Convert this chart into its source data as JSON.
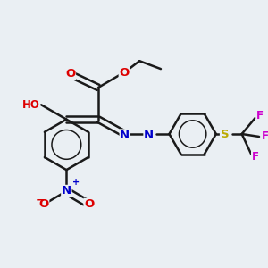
{
  "bg_color": "#eaeff3",
  "bond_color": "#1a1a1a",
  "bond_width": 1.8,
  "colors": {
    "O": "#dd0000",
    "N": "#0000cc",
    "F": "#cc00cc",
    "S": "#bbaa00",
    "C": "#1a1a1a"
  },
  "font_size": 8.5
}
